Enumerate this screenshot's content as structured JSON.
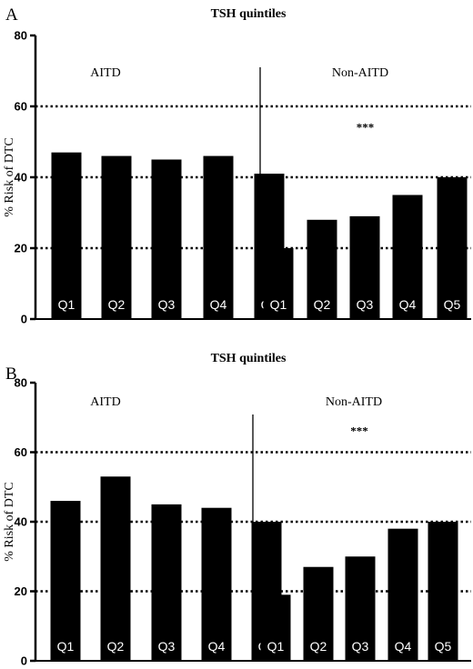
{
  "chart_data": [
    {
      "type": "bar",
      "panel_letter": "A",
      "title": "TSH quintiles",
      "xlabel": "",
      "ylabel": "% Risk of DTC",
      "ylim": [
        0,
        80
      ],
      "yticks": [
        0,
        20,
        40,
        60,
        80
      ],
      "reference_lines": [
        20,
        40,
        60
      ],
      "reference_line_style": "dotted",
      "groups": [
        {
          "label": "AITD",
          "categories": [
            "Q1",
            "Q2",
            "Q3",
            "Q4",
            "Q5"
          ],
          "values": [
            47,
            46,
            45,
            46,
            41
          ]
        },
        {
          "label": "Non-AITD",
          "categories": [
            "Q1",
            "Q2",
            "Q3",
            "Q4",
            "Q5"
          ],
          "values": [
            20,
            28,
            29,
            35,
            40
          ]
        }
      ],
      "annotations": [
        {
          "text": "***",
          "group": "Non-AITD",
          "y": 53
        }
      ],
      "bar_color": "#000000"
    },
    {
      "type": "bar",
      "panel_letter": "B",
      "title": "TSH quintiles",
      "xlabel": "",
      "ylabel": "% Risk of DTC",
      "ylim": [
        0,
        80
      ],
      "yticks": [
        0,
        20,
        40,
        60,
        80
      ],
      "reference_lines": [
        20,
        40,
        60
      ],
      "reference_line_style": "dotted",
      "groups": [
        {
          "label": "AITD",
          "categories": [
            "Q1",
            "Q2",
            "Q3",
            "Q4",
            "Q5"
          ],
          "values": [
            46,
            53,
            45,
            44,
            40
          ]
        },
        {
          "label": "Non-AITD",
          "categories": [
            "Q1",
            "Q2",
            "Q3",
            "Q4",
            "Q5"
          ],
          "values": [
            19,
            27,
            30,
            38,
            40
          ]
        }
      ],
      "annotations": [
        {
          "text": "***",
          "group": "Non-AITD",
          "y": 65
        }
      ],
      "bar_color": "#000000"
    }
  ]
}
